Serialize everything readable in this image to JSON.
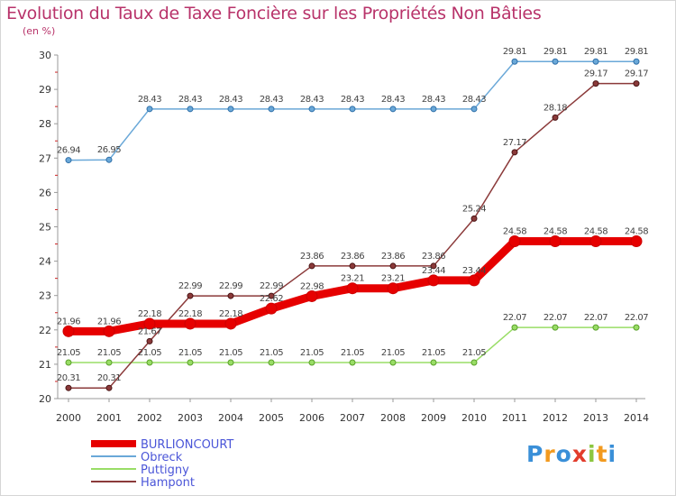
{
  "title": "Evolution du Taux de Taxe Foncière sur les Propriétés Non Bâties",
  "unit": "(en %)",
  "logo": {
    "letters": [
      "P",
      "r",
      "o",
      "x",
      "i",
      "t",
      "i"
    ],
    "colors": [
      "#3a8fd8",
      "#f29a1f",
      "#3a8fd8",
      "#e23c2c",
      "#8cc63f",
      "#f29a1f",
      "#3a8fd8"
    ]
  },
  "chart_data": {
    "type": "line",
    "title": "Evolution du Taux de Taxe Foncière sur les Propriétés Non Bâties",
    "ylabel": "(en %)",
    "xlabel": "",
    "ylim": [
      20,
      30
    ],
    "yticks": [
      "20",
      "21",
      "22",
      "23",
      "24",
      "25",
      "26",
      "27",
      "28",
      "29",
      "30"
    ],
    "grid": false,
    "legend_position": "bottom-left",
    "x": [
      "2000",
      "2001",
      "2002",
      "2003",
      "2004",
      "2005",
      "2006",
      "2007",
      "2008",
      "2009",
      "2010",
      "2011",
      "2012",
      "2013",
      "2014"
    ],
    "series": [
      {
        "name": "BURLIONCOURT",
        "color": "#e60000",
        "width": 9,
        "values": [
          21.96,
          21.96,
          22.18,
          22.18,
          22.18,
          22.62,
          22.98,
          23.21,
          23.21,
          23.44,
          23.44,
          24.58,
          24.58,
          24.58,
          24.58
        ]
      },
      {
        "name": "Obreck",
        "color": "#6aa8d8",
        "width": 1.5,
        "values": [
          26.94,
          26.95,
          28.43,
          28.43,
          28.43,
          28.43,
          28.43,
          28.43,
          28.43,
          28.43,
          28.43,
          29.81,
          29.81,
          29.81,
          29.81
        ]
      },
      {
        "name": "Puttigny",
        "color": "#99dd66",
        "width": 1.5,
        "values": [
          21.05,
          21.05,
          21.05,
          21.05,
          21.05,
          21.05,
          21.05,
          21.05,
          21.05,
          21.05,
          21.05,
          22.07,
          22.07,
          22.07,
          22.07
        ]
      },
      {
        "name": "Hampont",
        "color": "#8b3a3a",
        "width": 1.5,
        "values": [
          20.31,
          20.31,
          21.67,
          22.99,
          22.99,
          22.99,
          23.86,
          23.86,
          23.86,
          23.86,
          25.24,
          27.17,
          28.18,
          29.17,
          29.17
        ]
      }
    ],
    "data_labels": {
      "BURLIONCOURT": [
        "21.96",
        "21.96",
        "22.18",
        "22.18",
        "22.18",
        "22.62",
        "22.98",
        "23.21",
        "23.21",
        "23.44",
        "23.44",
        "24.58",
        "24.58",
        "24.58",
        "24.58"
      ],
      "Obreck": [
        "26.94",
        "26.95",
        "28.43",
        "28.43",
        "28.43",
        "28.43",
        "28.43",
        "28.43",
        "28.43",
        "28.43",
        "28.43",
        "29.81",
        "29.81",
        "29.81",
        "29.81"
      ],
      "Puttigny": [
        "21.05",
        "21.05",
        "21.05",
        "21.05",
        "21.05",
        "21.05",
        "21.05",
        "21.05",
        "21.05",
        "21.05",
        "21.05",
        "22.07",
        "22.07",
        "22.07",
        "22.07"
      ],
      "Hampont": [
        "20.31",
        "20.31",
        "21.67",
        "22.99",
        "22.99",
        "22.99",
        "23.86",
        "23.86",
        "23.86",
        "23.86",
        "25.24",
        "27.17",
        "28.18",
        "29.17",
        "29.17"
      ]
    }
  }
}
